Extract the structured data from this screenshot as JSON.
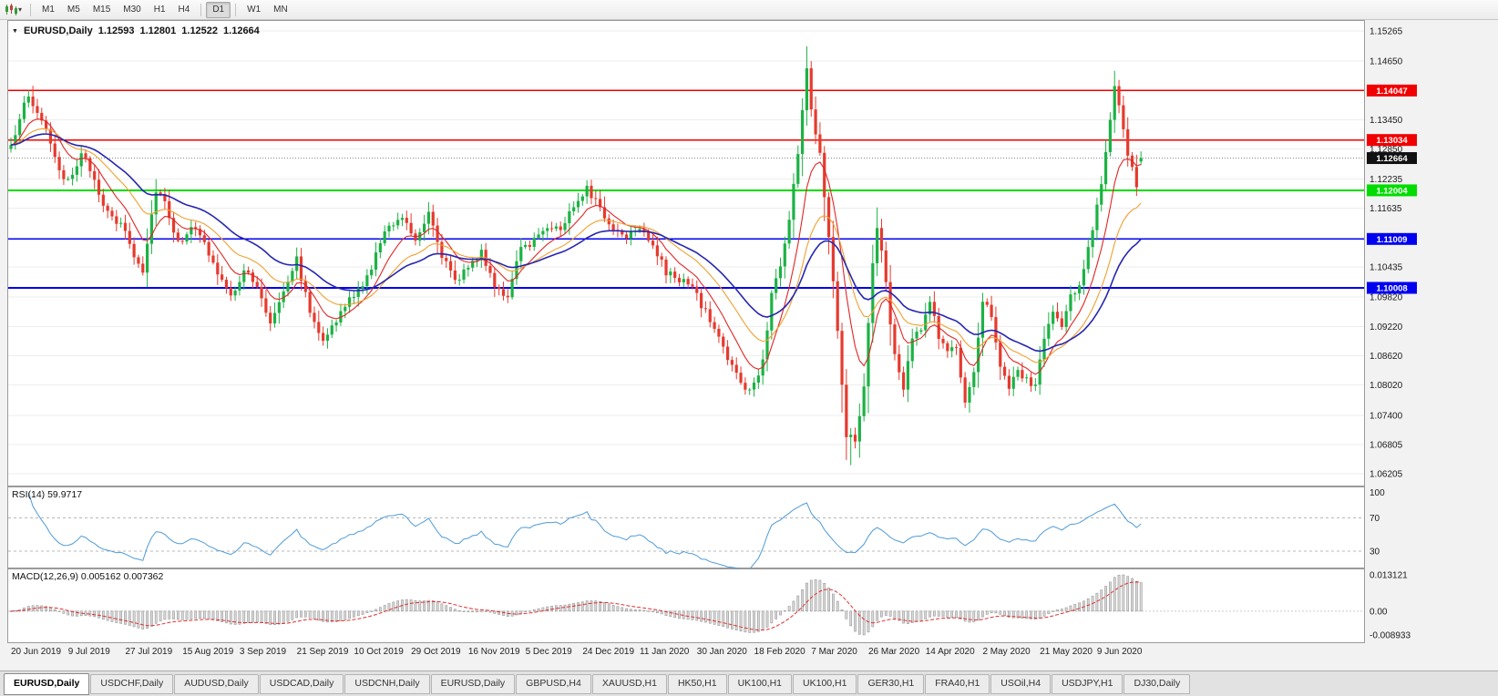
{
  "toolbar": {
    "timeframes": [
      {
        "label": "M1",
        "active": false
      },
      {
        "label": "M5",
        "active": false
      },
      {
        "label": "M15",
        "active": false
      },
      {
        "label": "M30",
        "active": false
      },
      {
        "label": "H1",
        "active": false
      },
      {
        "label": "H4",
        "active": false,
        "sep_after": true
      },
      {
        "label": "D1",
        "active": true,
        "sep_after": true
      },
      {
        "label": "W1",
        "active": false
      },
      {
        "label": "MN",
        "active": false
      }
    ]
  },
  "icons": {
    "dropdown_caret": "▾",
    "collapse_arrow": "▼"
  },
  "tabs": [
    {
      "label": "EURUSD,Daily",
      "active": true
    },
    {
      "label": "USDCHF,Daily",
      "active": false
    },
    {
      "label": "AUDUSD,Daily",
      "active": false
    },
    {
      "label": "USDCAD,Daily",
      "active": false
    },
    {
      "label": "USDCNH,Daily",
      "active": false
    },
    {
      "label": "EURUSD,Daily",
      "active": false
    },
    {
      "label": "GBPUSD,H4",
      "active": false
    },
    {
      "label": "XAUUSD,H1",
      "active": false
    },
    {
      "label": "HK50,H1",
      "active": false
    },
    {
      "label": "UK100,H1",
      "active": false
    },
    {
      "label": "UK100,H1",
      "active": false
    },
    {
      "label": "GER30,H1",
      "active": false
    },
    {
      "label": "FRA40,H1",
      "active": false
    },
    {
      "label": "USOil,H4",
      "active": false
    },
    {
      "label": "USDJPY,H1",
      "active": false
    },
    {
      "label": "DJ30,Daily",
      "active": false
    }
  ],
  "colors": {
    "window_bg": "#f2f2f2",
    "plot_bg": "#ffffff",
    "plot_border": "#9a9a9a",
    "grid": "#ededed",
    "up": "#1cb244",
    "down": "#e63a2e"
  },
  "chart_data": [
    {
      "type": "candlestick",
      "title": "EURUSD,Daily",
      "timeframe": "D1",
      "ohlc_display": [
        "1.12593",
        "1.12801",
        "1.12522",
        "1.12664"
      ],
      "y_range": [
        1.06205,
        1.15265
      ],
      "y_ticks": [
        "1.15265",
        "1.14650",
        "1.13450",
        "1.12850",
        "1.12235",
        "1.11635",
        "1.10435",
        "1.09820",
        "1.09220",
        "1.08620",
        "1.08020",
        "1.07400",
        "1.06805",
        "1.06205"
      ],
      "levels": [
        {
          "price": 1.14047,
          "label": "1.14047",
          "color": "#f00000",
          "width": 1.8,
          "style": "solid"
        },
        {
          "price": 1.13034,
          "label": "1.13034",
          "color": "#f00000",
          "width": 1.8,
          "style": "solid"
        },
        {
          "price": 1.12664,
          "label": "1.12664",
          "color": "#888888",
          "width": 1,
          "style": "dotted",
          "badge": "#111111"
        },
        {
          "price": 1.12004,
          "label": "1.12004",
          "color": "#00dc00",
          "width": 1.8,
          "style": "solid"
        },
        {
          "price": 1.11009,
          "label": "1.11009",
          "color": "#0000f0",
          "width": 1.8,
          "style": "solid"
        },
        {
          "price": 1.10008,
          "label": "1.10008",
          "color": "#0000f0",
          "width": 1.8,
          "style": "solid"
        }
      ],
      "x_labels": [
        "20 Jun 2019",
        "9 Jul 2019",
        "27 Jul 2019",
        "15 Aug 2019",
        "3 Sep 2019",
        "21 Sep 2019",
        "10 Oct 2019",
        "29 Oct 2019",
        "16 Nov 2019",
        "5 Dec 2019",
        "24 Dec 2019",
        "11 Jan 2020",
        "30 Jan 2020",
        "18 Feb 2020",
        "7 Mar 2020",
        "26 Mar 2020",
        "14 Apr 2020",
        "2 May 2020",
        "21 May 2020",
        "9 Jun 2020"
      ],
      "label_step": 13,
      "candle_count": 258,
      "close_waypoints": [
        [
          0,
          1.1285
        ],
        [
          2,
          1.1355
        ],
        [
          4,
          1.139
        ],
        [
          6,
          1.136
        ],
        [
          8,
          1.133
        ],
        [
          10,
          1.126
        ],
        [
          12,
          1.1215
        ],
        [
          14,
          1.124
        ],
        [
          16,
          1.127
        ],
        [
          18,
          1.1245
        ],
        [
          20,
          1.12
        ],
        [
          22,
          1.115
        ],
        [
          24,
          1.1135
        ],
        [
          26,
          1.112
        ],
        [
          28,
          1.1065
        ],
        [
          30,
          1.104
        ],
        [
          32,
          1.115
        ],
        [
          33,
          1.1205
        ],
        [
          35,
          1.118
        ],
        [
          38,
          1.109
        ],
        [
          41,
          1.113
        ],
        [
          44,
          1.109
        ],
        [
          47,
          1.103
        ],
        [
          50,
          1.098
        ],
        [
          53,
          1.104
        ],
        [
          56,
          1.1
        ],
        [
          59,
          1.093
        ],
        [
          62,
          1.1
        ],
        [
          65,
          1.106
        ],
        [
          68,
          1.095
        ],
        [
          71,
          1.09
        ],
        [
          74,
          1.093
        ],
        [
          77,
          1.098
        ],
        [
          80,
          1.1
        ],
        [
          83,
          1.107
        ],
        [
          86,
          1.113
        ],
        [
          89,
          1.115
        ],
        [
          92,
          1.11
        ],
        [
          95,
          1.116
        ],
        [
          98,
          1.107
        ],
        [
          101,
          1.101
        ],
        [
          104,
          1.105
        ],
        [
          107,
          1.107
        ],
        [
          110,
          1.101
        ],
        [
          113,
          1.098
        ],
        [
          116,
          1.108
        ],
        [
          119,
          1.11
        ],
        [
          122,
          1.113
        ],
        [
          125,
          1.112
        ],
        [
          128,
          1.117
        ],
        [
          131,
          1.121
        ],
        [
          134,
          1.116
        ],
        [
          137,
          1.112
        ],
        [
          140,
          1.111
        ],
        [
          143,
          1.113
        ],
        [
          146,
          1.109
        ],
        [
          149,
          1.103
        ],
        [
          152,
          1.102
        ],
        [
          155,
          1.1
        ],
        [
          158,
          1.095
        ],
        [
          161,
          1.09
        ],
        [
          164,
          1.084
        ],
        [
          167,
          1.079
        ],
        [
          169,
          1.08
        ],
        [
          171,
          1.085
        ],
        [
          173,
          1.099
        ],
        [
          175,
          1.105
        ],
        [
          177,
          1.114
        ],
        [
          179,
          1.128
        ],
        [
          181,
          1.145
        ],
        [
          182,
          1.136
        ],
        [
          184,
          1.128
        ],
        [
          186,
          1.111
        ],
        [
          188,
          1.092
        ],
        [
          190,
          1.07
        ],
        [
          192,
          1.069
        ],
        [
          194,
          1.08
        ],
        [
          196,
          1.105
        ],
        [
          197,
          1.113
        ],
        [
          199,
          1.101
        ],
        [
          201,
          1.086
        ],
        [
          203,
          1.079
        ],
        [
          205,
          1.09
        ],
        [
          207,
          1.091
        ],
        [
          209,
          1.098
        ],
        [
          211,
          1.09
        ],
        [
          213,
          1.087
        ],
        [
          215,
          1.088
        ],
        [
          217,
          1.076
        ],
        [
          219,
          1.082
        ],
        [
          221,
          1.098
        ],
        [
          223,
          1.095
        ],
        [
          225,
          1.084
        ],
        [
          227,
          1.079
        ],
        [
          229,
          1.083
        ],
        [
          231,
          1.081
        ],
        [
          233,
          1.08
        ],
        [
          235,
          1.09
        ],
        [
          237,
          1.095
        ],
        [
          239,
          1.092
        ],
        [
          241,
          1.098
        ],
        [
          243,
          1.101
        ],
        [
          245,
          1.108
        ],
        [
          247,
          1.117
        ],
        [
          249,
          1.127
        ],
        [
          250,
          1.134
        ],
        [
          251,
          1.1405
        ],
        [
          252,
          1.138
        ],
        [
          253,
          1.132
        ],
        [
          254,
          1.128
        ],
        [
          255,
          1.124
        ],
        [
          256,
          1.1205
        ],
        [
          257,
          1.12664
        ]
      ],
      "extreme_wicks": [
        {
          "index": 4,
          "high": 1.1405
        },
        {
          "index": 181,
          "high": 1.1495
        },
        {
          "index": 191,
          "low": 1.0638
        },
        {
          "index": 251,
          "high": 1.1422
        },
        {
          "index": 256,
          "low": 1.119
        }
      ],
      "moving_averages": [
        {
          "name": "fast",
          "period": 9,
          "color": "#e02626",
          "width": 1.1
        },
        {
          "name": "medium",
          "period": 20,
          "color": "#f0a030",
          "width": 1.1
        },
        {
          "name": "slow",
          "period": 34,
          "color": "#2626b0",
          "width": 1.6
        }
      ]
    },
    {
      "type": "line",
      "name": "RSI",
      "label": "RSI(14) 59.9717",
      "period": 14,
      "current": 59.9717,
      "y_ticks": [
        "100",
        "70",
        "30"
      ],
      "levels": [
        70,
        30
      ],
      "scale_range": [
        15,
        104
      ],
      "line_color": "#4f9bd8"
    },
    {
      "type": "histogram_line",
      "name": "MACD",
      "label": "MACD(12,26,9) 0.005162 0.007362",
      "fast": 12,
      "slow": 26,
      "signal_period": 9,
      "macd_value": 0.005162,
      "signal_value": 0.007362,
      "y_tick_labels": [
        "0.013121",
        "0.00",
        "-0.008933"
      ],
      "bar_fill": "#d8d8d8",
      "bar_outline": "#8a8a8a",
      "signal_color": "#e03030"
    }
  ]
}
